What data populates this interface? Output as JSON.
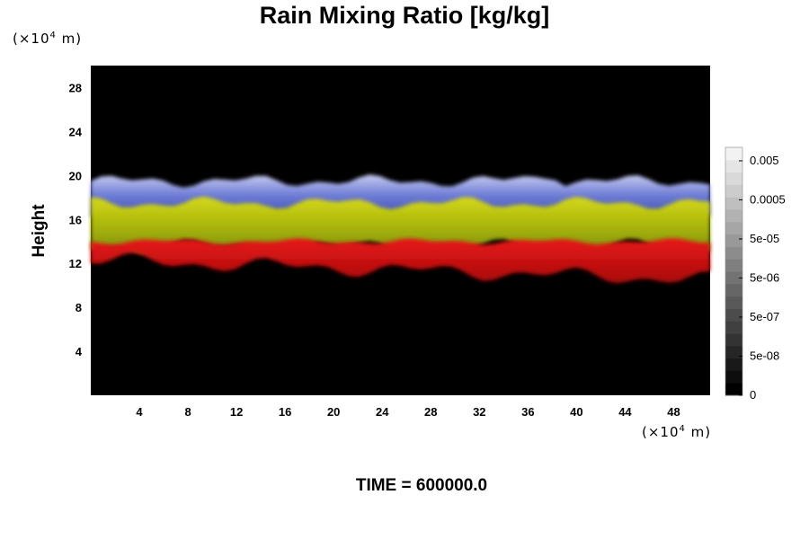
{
  "title": "Rain Mixing Ratio [kg/kg]",
  "footer": "TIME = 600000.0",
  "chart_data": {
    "type": "heatmap",
    "title": "Rain Mixing Ratio [kg/kg]",
    "ylabel": "Height",
    "xlabel": "",
    "x_unit": {
      "pre": "(×10",
      "exp": "4",
      "post": " m)"
    },
    "y_unit": {
      "pre": "(×10",
      "exp": "4",
      "post": " m)"
    },
    "xlim": [
      0,
      51
    ],
    "ylim": [
      0,
      30
    ],
    "x_ticks": [
      4,
      8,
      12,
      16,
      20,
      24,
      28,
      32,
      36,
      40,
      44,
      48
    ],
    "y_ticks": [
      4,
      8,
      12,
      16,
      20,
      24,
      28
    ],
    "background": "#000000",
    "layers": [
      {
        "color": "#3b49c8",
        "bottom": 16.2,
        "top": 19.5,
        "peak_top": 20
      },
      {
        "color": "#b4c00c",
        "bottom": 13.5,
        "top": 17.5,
        "peak_top": 18
      },
      {
        "color": "#d10d0d",
        "bottom": 10.5,
        "top": 14,
        "peak_top": 14
      }
    ],
    "colorbar": {
      "labels": [
        "0.005",
        "0.0005",
        "5e-05",
        "5e-06",
        "5e-07",
        "5e-08",
        "0"
      ],
      "levels": 20,
      "low_color": "#000000",
      "high_color": "#f2f2f2"
    },
    "time": "600000.0"
  }
}
